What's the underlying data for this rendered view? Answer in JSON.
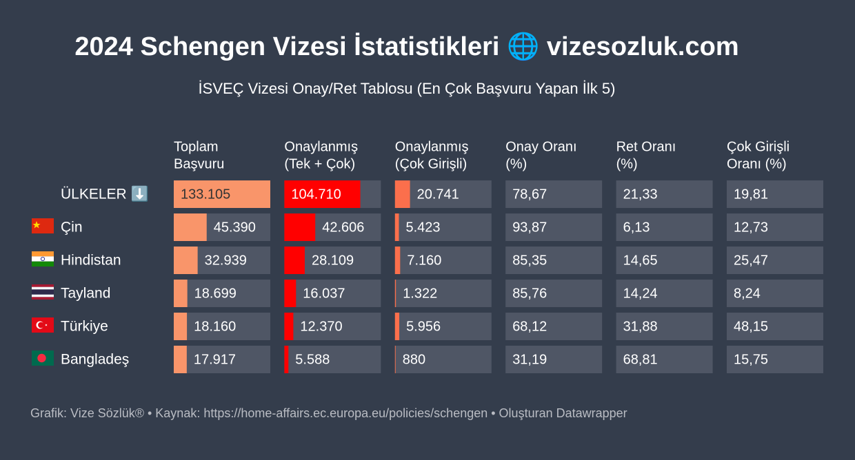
{
  "header": {
    "title": "2024 Schengen Vizesi İstatistikleri 🌐 vizesozluk.com",
    "subtitle": "İSVEÇ Vizesi Onay/Ret Tablosu (En Çok Başvuru Yapan İlk 5)"
  },
  "table": {
    "columns": [
      [
        "Toplam",
        "Başvuru"
      ],
      [
        "Onaylanmış",
        "(Tek + Çok)"
      ],
      [
        "Onaylanmış",
        "(Çok Girişli)"
      ],
      [
        "Onay Oranı",
        "(%)"
      ],
      [
        "Ret Oranı",
        "(%)"
      ],
      [
        "Çok Girişli",
        "Oranı (%)"
      ]
    ],
    "bar_colors": [
      "#f9956a",
      "#ff0000",
      "#fb6f4c"
    ],
    "rows": [
      {
        "label": "ÜLKELER ⬇️",
        "values": [
          133105,
          104710,
          20741,
          78.67,
          21.33,
          19.81
        ],
        "value_labels": [
          "133.105",
          "104.710",
          "20.741",
          "78,67",
          "21,33",
          "19,81"
        ]
      },
      {
        "label": "Çin",
        "values": [
          45390,
          42606,
          5423,
          93.87,
          6.13,
          12.73
        ],
        "value_labels": [
          "45.390",
          "42.606",
          "5.423",
          "93,87",
          "6,13",
          "12,73"
        ]
      },
      {
        "label": "Hindistan",
        "values": [
          32939,
          28109,
          7160,
          85.35,
          14.65,
          25.47
        ],
        "value_labels": [
          "32.939",
          "28.109",
          "7.160",
          "85,35",
          "14,65",
          "25,47"
        ]
      },
      {
        "label": "Tayland",
        "values": [
          18699,
          16037,
          1322,
          85.76,
          14.24,
          8.24
        ],
        "value_labels": [
          "18.699",
          "16.037",
          "1.322",
          "85,76",
          "14,24",
          "8,24"
        ]
      },
      {
        "label": "Türkiye",
        "values": [
          18160,
          12370,
          5956,
          68.12,
          31.88,
          48.15
        ],
        "value_labels": [
          "18.160",
          "12.370",
          "5.956",
          "68,12",
          "31,88",
          "48,15"
        ]
      },
      {
        "label": "Bangladeş",
        "values": [
          17917,
          5588,
          880,
          31.19,
          68.81,
          15.75
        ],
        "value_labels": [
          "17.917",
          "5.588",
          "880",
          "31,19",
          "68,81",
          "15,75"
        ]
      }
    ]
  },
  "footer": "Grafik: Vize Sözlük® • Kaynak: https://home-affairs.ec.europa.eu/policies/schengen • Oluşturan Datawrapper"
}
